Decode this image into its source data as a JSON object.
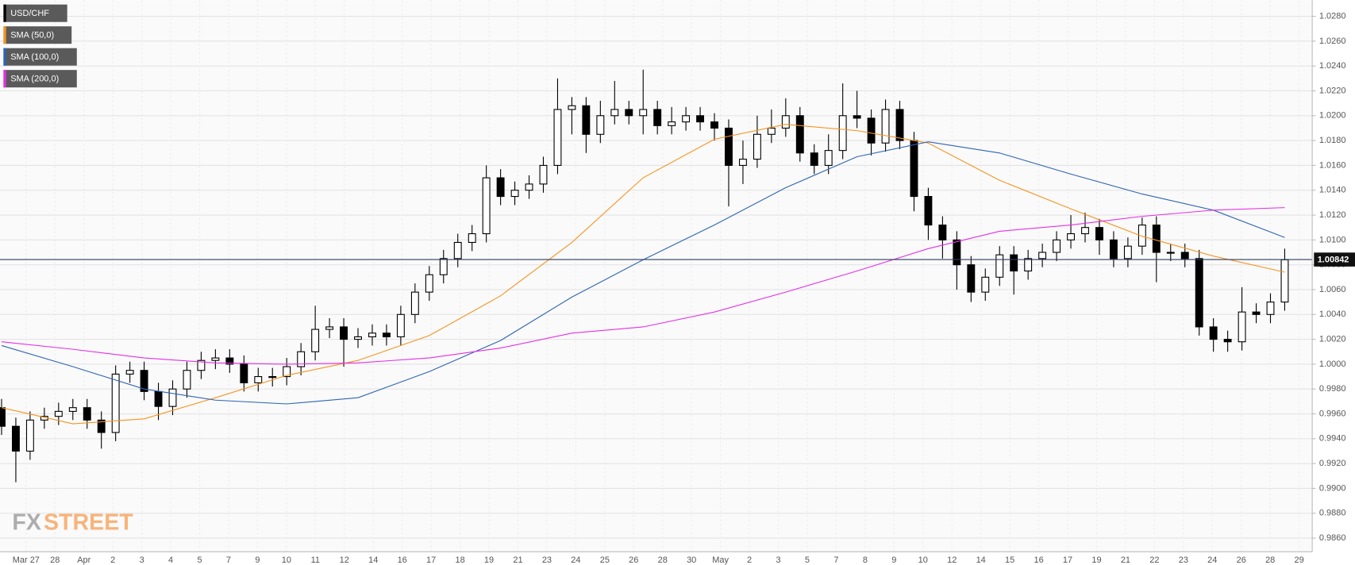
{
  "chart_data": {
    "type": "candlestick",
    "categories": [
      "Mar 27",
      "28",
      "Apr",
      "2",
      "3",
      "4",
      "5",
      "7",
      "9",
      "10",
      "11",
      "12",
      "14",
      "16",
      "17",
      "18",
      "19",
      "21",
      "23",
      "24",
      "25",
      "26",
      "28",
      "30",
      "May",
      "2",
      "3",
      "5",
      "7",
      "8",
      "9",
      "10",
      "12",
      "14",
      "15",
      "16",
      "17",
      "19",
      "21",
      "22",
      "23",
      "24",
      "26",
      "28",
      "29"
    ],
    "ohlc": {
      "name": "USD/CHF",
      "color": "#000000",
      "open": [
        0.9965,
        0.995,
        0.993,
        0.9955,
        0.9958,
        0.9962,
        0.9965,
        0.9955,
        0.9945,
        0.9992,
        0.9995,
        0.9978,
        0.9966,
        0.998,
        0.9995,
        1.0003,
        1.0005,
        1.0,
        0.9985,
        0.999,
        0.999,
        0.9998,
        1.001,
        1.0028,
        1.003,
        1.002,
        1.0022,
        1.0025,
        1.0022,
        1.004,
        1.0058,
        1.0072,
        1.0085,
        1.0098,
        1.0105,
        1.015,
        1.0135,
        1.014,
        1.0145,
        1.016,
        1.0205,
        1.0208,
        1.0185,
        1.02,
        1.0205,
        1.02,
        1.0205,
        1.0192,
        1.0195,
        1.02,
        1.0195,
        1.019,
        1.016,
        1.0165,
        1.0185,
        1.019,
        1.02,
        1.017,
        1.016,
        1.0172,
        1.02,
        1.0198,
        1.0178,
        1.0205,
        1.018,
        1.0135,
        1.0112,
        1.01,
        1.008,
        1.0058,
        1.007,
        1.0088,
        1.0075,
        1.0085,
        1.009,
        1.01,
        1.0105,
        1.011,
        1.01,
        1.0085,
        1.0095,
        1.0112,
        1.009,
        1.009,
        1.0085,
        1.003,
        1.002,
        1.0018,
        1.0042,
        1.004,
        1.005
      ],
      "high": [
        0.9972,
        0.9957,
        0.9962,
        0.9965,
        0.9969,
        0.9972,
        0.9972,
        0.9962,
        0.9999,
        1.0002,
        1.0002,
        0.9985,
        0.9987,
        1.0002,
        1.001,
        1.0012,
        1.0012,
        1.0007,
        0.9997,
        0.9997,
        1.0005,
        1.0017,
        1.0047,
        1.0037,
        1.0037,
        1.0029,
        1.0032,
        1.0032,
        1.0047,
        1.0065,
        1.0079,
        1.0092,
        1.0105,
        1.0112,
        1.016,
        1.0157,
        1.0147,
        1.0152,
        1.0167,
        1.023,
        1.0215,
        1.0215,
        1.0212,
        1.0228,
        1.0212,
        1.0237,
        1.0212,
        1.0207,
        1.0207,
        1.0207,
        1.0202,
        1.0197,
        1.018,
        1.02,
        1.0205,
        1.0214,
        1.0207,
        1.0177,
        1.0185,
        1.0226,
        1.022,
        1.0205,
        1.0213,
        1.0212,
        1.0187,
        1.0142,
        1.0119,
        1.0107,
        1.0087,
        1.0077,
        1.0095,
        1.0095,
        1.0092,
        1.0097,
        1.0107,
        1.012,
        1.0122,
        1.0117,
        1.0107,
        1.0102,
        1.0118,
        1.0119,
        1.0097,
        1.0097,
        1.0092,
        1.0037,
        1.0027,
        1.0062,
        1.0049,
        1.0057,
        1.0093
      ],
      "low": [
        0.9943,
        0.9905,
        0.9923,
        0.9948,
        0.9951,
        0.9955,
        0.9948,
        0.9932,
        0.9938,
        0.9985,
        0.9971,
        0.9955,
        0.9959,
        0.9973,
        0.9988,
        0.9996,
        0.9993,
        0.9978,
        0.9978,
        0.9982,
        0.9983,
        0.9991,
        1.0003,
        1.0021,
        0.9998,
        1.0013,
        1.0015,
        1.0015,
        1.0015,
        1.0033,
        1.0051,
        1.0065,
        1.0078,
        1.0091,
        1.0098,
        1.0128,
        1.0128,
        1.0133,
        1.0138,
        1.0153,
        1.0185,
        1.017,
        1.0178,
        1.0193,
        1.0193,
        1.0185,
        1.0185,
        1.0185,
        1.0188,
        1.0188,
        1.018,
        1.0127,
        1.0145,
        1.0158,
        1.0178,
        1.0183,
        1.0163,
        1.0153,
        1.0153,
        1.0165,
        1.019,
        1.0168,
        1.0171,
        1.0173,
        1.0123,
        1.01,
        1.0085,
        1.006,
        1.005,
        1.0051,
        1.0063,
        1.0056,
        1.0068,
        1.0078,
        1.0083,
        1.0093,
        1.0098,
        1.0088,
        1.0078,
        1.0078,
        1.0088,
        1.0066,
        1.0083,
        1.0078,
        1.0023,
        1.001,
        1.001,
        1.0011,
        1.0033,
        1.0033,
        1.0043
      ],
      "close": [
        0.995,
        0.993,
        0.9955,
        0.9958,
        0.9962,
        0.9965,
        0.9955,
        0.9945,
        0.9992,
        0.9995,
        0.9978,
        0.9966,
        0.998,
        0.9995,
        1.0003,
        1.0005,
        1.0,
        0.9985,
        0.999,
        0.999,
        0.9998,
        1.001,
        1.0028,
        1.003,
        1.002,
        1.0022,
        1.0025,
        1.0022,
        1.004,
        1.0058,
        1.0072,
        1.0085,
        1.0098,
        1.0105,
        1.015,
        1.0135,
        1.014,
        1.0145,
        1.016,
        1.0205,
        1.0208,
        1.0185,
        1.02,
        1.0205,
        1.02,
        1.0205,
        1.0192,
        1.0195,
        1.02,
        1.0195,
        1.019,
        1.016,
        1.0165,
        1.0185,
        1.019,
        1.02,
        1.017,
        1.016,
        1.0172,
        1.02,
        1.0198,
        1.0178,
        1.0205,
        1.018,
        1.0135,
        1.0112,
        1.01,
        1.008,
        1.0058,
        1.007,
        1.0088,
        1.0075,
        1.0085,
        1.009,
        1.01,
        1.0105,
        1.011,
        1.01,
        1.0085,
        1.0095,
        1.0112,
        1.009,
        1.009,
        1.0085,
        1.003,
        1.002,
        1.0018,
        1.0042,
        1.004,
        1.005,
        1.0084
      ]
    },
    "series": [
      {
        "name": "SMA (50,0)",
        "color": "#f7931e",
        "type": "line",
        "x": [
          0,
          5,
          10,
          15,
          20,
          25,
          30,
          35,
          40,
          45,
          50,
          55,
          60,
          65,
          70,
          75,
          80,
          85,
          90
        ],
        "values": [
          0.9965,
          0.9952,
          0.9956,
          0.9973,
          0.9991,
          1.0003,
          1.0023,
          1.0055,
          1.0098,
          1.015,
          1.0181,
          1.0193,
          1.0188,
          1.0178,
          1.0148,
          1.0125,
          1.0103,
          1.0087,
          1.0074
        ]
      },
      {
        "name": "SMA (100,0)",
        "color": "#2e64b4",
        "type": "line",
        "x": [
          0,
          5,
          10,
          15,
          20,
          25,
          30,
          35,
          40,
          45,
          50,
          55,
          60,
          65,
          70,
          75,
          80,
          85,
          90
        ],
        "values": [
          1.0015,
          0.9998,
          0.998,
          0.9971,
          0.9968,
          0.9973,
          0.9994,
          1.0019,
          1.0054,
          1.0084,
          1.0112,
          1.0142,
          1.0167,
          1.0179,
          1.017,
          1.0153,
          1.0137,
          1.0124,
          1.0102
        ]
      },
      {
        "name": "SMA (200,0)",
        "color": "#e52fe5",
        "type": "line",
        "x": [
          0,
          5,
          10,
          15,
          20,
          25,
          30,
          35,
          40,
          45,
          50,
          55,
          60,
          65,
          70,
          75,
          80,
          85,
          90
        ],
        "values": [
          1.0018,
          1.0012,
          1.0005,
          1.0001,
          1.0,
          1.0001,
          1.0005,
          1.0013,
          1.0025,
          1.003,
          1.0042,
          1.0058,
          1.0075,
          1.0093,
          1.0107,
          1.0112,
          1.0119,
          1.0124,
          1.0126
        ]
      }
    ],
    "last_price": 1.00842,
    "ylim": [
      0.9849,
      1.0293
    ],
    "yticks": [
      {
        "value": 0.986,
        "label": "0.9860"
      },
      {
        "value": 0.988,
        "label": "0.9880"
      },
      {
        "value": 0.99,
        "label": "0.9900"
      },
      {
        "value": 0.992,
        "label": "0.9920"
      },
      {
        "value": 0.994,
        "label": "0.9940"
      },
      {
        "value": 0.996,
        "label": "0.9960"
      },
      {
        "value": 0.998,
        "label": "0.9980"
      },
      {
        "value": 1.0,
        "label": "1.0000"
      },
      {
        "value": 1.002,
        "label": "1.0020"
      },
      {
        "value": 1.004,
        "label": "1.0040"
      },
      {
        "value": 1.006,
        "label": "1.0060"
      },
      {
        "value": 1.008,
        "label": "1.0080"
      },
      {
        "value": 1.01,
        "label": "1.0100"
      },
      {
        "value": 1.012,
        "label": "1.0120"
      },
      {
        "value": 1.014,
        "label": "1.0140"
      },
      {
        "value": 1.016,
        "label": "1.0160"
      },
      {
        "value": 1.018,
        "label": "1.0180"
      },
      {
        "value": 1.02,
        "label": "1.0200"
      },
      {
        "value": 1.022,
        "label": "1.0220"
      },
      {
        "value": 1.024,
        "label": "1.0240"
      },
      {
        "value": 1.026,
        "label": "1.0260"
      },
      {
        "value": 1.028,
        "label": "1.0280"
      }
    ],
    "grid": true,
    "logo": {
      "prefix": "FX",
      "suffix": "STREET"
    }
  }
}
